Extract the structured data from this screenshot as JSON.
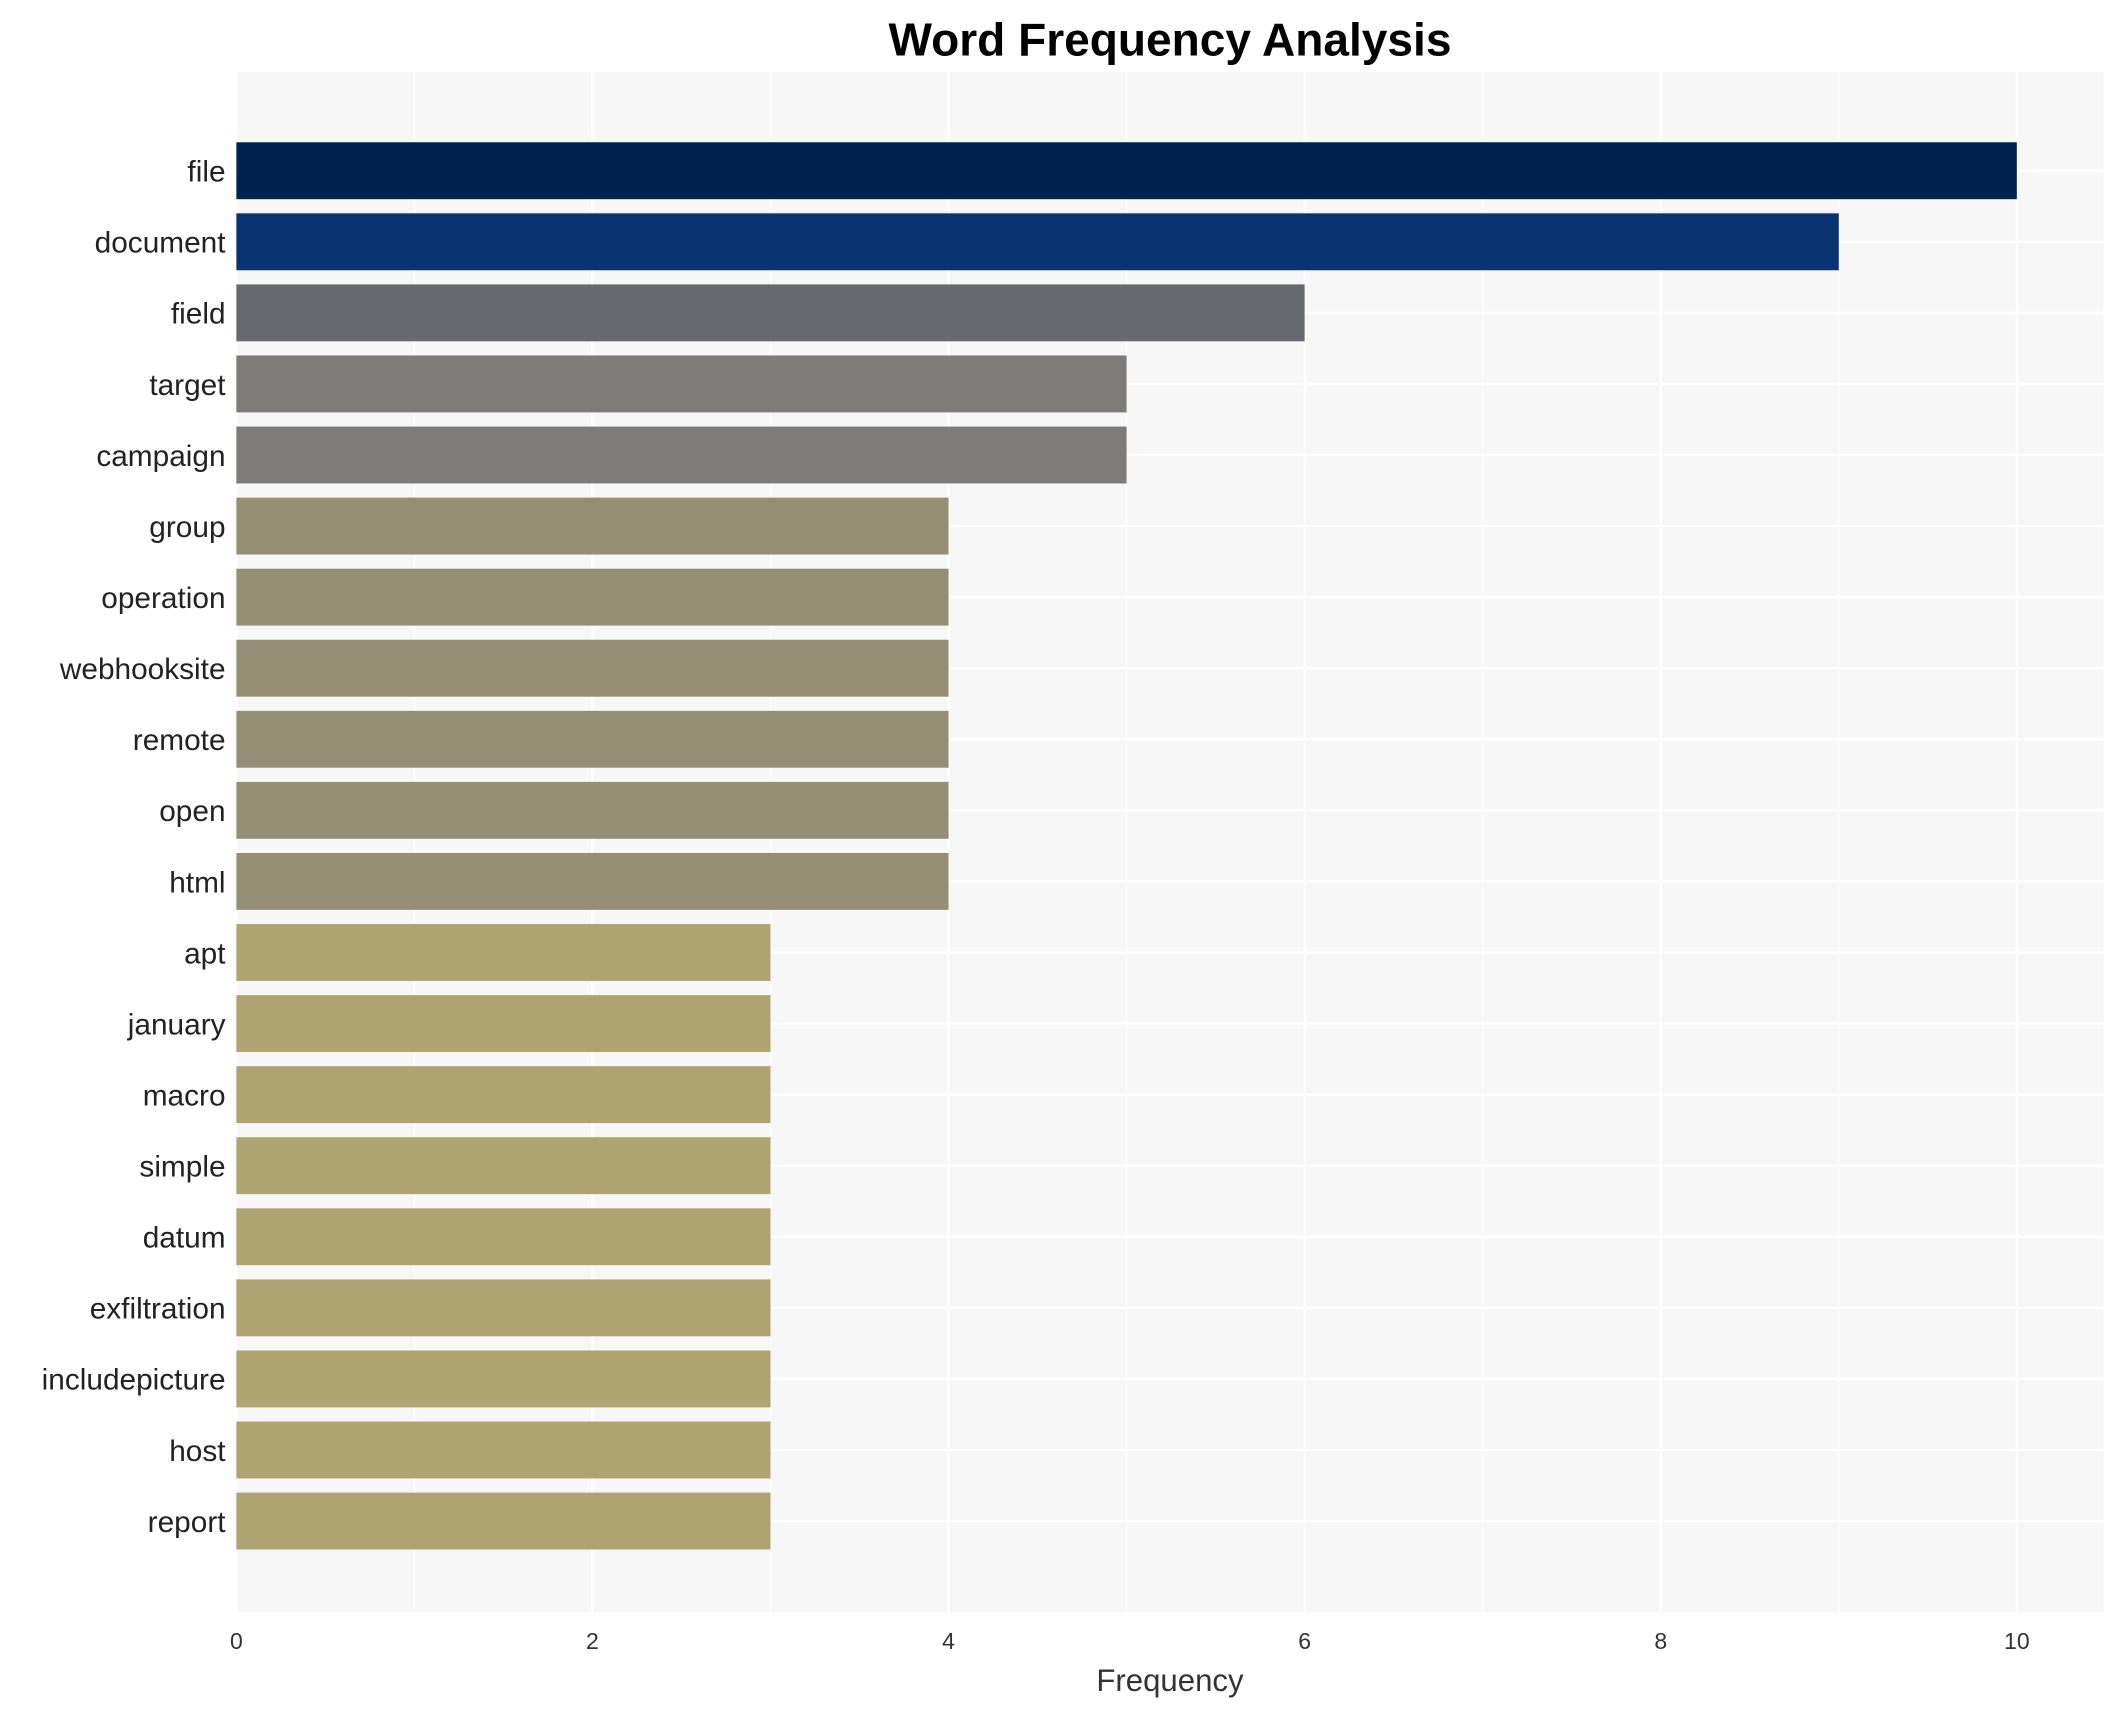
{
  "chart_data": {
    "type": "bar",
    "orientation": "horizontal",
    "title": "Word Frequency Analysis",
    "xlabel": "Frequency",
    "ylabel": "",
    "xlim": [
      0,
      10.5
    ],
    "xticks": [
      0,
      2,
      4,
      6,
      8,
      10
    ],
    "grid": true,
    "categories": [
      "file",
      "document",
      "field",
      "target",
      "campaign",
      "group",
      "operation",
      "webhooksite",
      "remote",
      "open",
      "html",
      "apt",
      "january",
      "macro",
      "simple",
      "datum",
      "exfiltration",
      "includepicture",
      "host",
      "report"
    ],
    "values": [
      10,
      9,
      6,
      5,
      5,
      4,
      4,
      4,
      4,
      4,
      4,
      3,
      3,
      3,
      3,
      3,
      3,
      3,
      3,
      3
    ],
    "colors": [
      "#00224e",
      "#083370",
      "#666970",
      "#7d7c78",
      "#7d7c78",
      "#958f76",
      "#958f76",
      "#958f76",
      "#958f76",
      "#958f76",
      "#958f76",
      "#afa471",
      "#afa471",
      "#afa471",
      "#afa471",
      "#afa471",
      "#afa471",
      "#afa471",
      "#afa471",
      "#afa471"
    ],
    "plot_background": "#f7f7f7"
  }
}
